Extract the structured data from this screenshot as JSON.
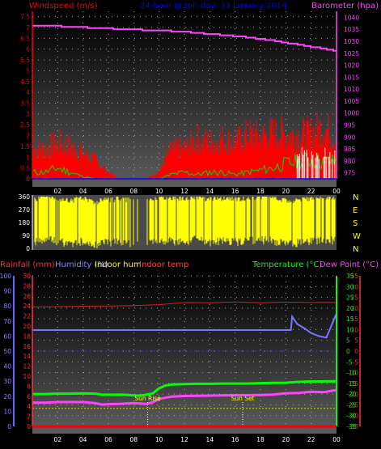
{
  "chart_data": [
    {
      "type": "line",
      "title": "24-hour graph day: 31 January 2014",
      "left_axis_label": "Windspeed (m/s)",
      "right_axis_label": "Barometer (hpa)",
      "x_ticks": [
        "02",
        "04",
        "06",
        "08",
        "10",
        "12",
        "14",
        "16",
        "18",
        "20",
        "22",
        "00"
      ],
      "left_ticks": [
        "0",
        "0.5",
        "1",
        "1.5",
        "2",
        "2.5",
        "3",
        "3.5",
        "4",
        "4.5",
        "5",
        "5.5",
        "6",
        "6.5",
        "7",
        "7.5"
      ],
      "right_ticks": [
        "975",
        "980",
        "985",
        "990",
        "995",
        "1000",
        "1005",
        "1010",
        "1015",
        "1020",
        "1025",
        "1030",
        "1035",
        "1040"
      ],
      "ylim_left": [
        0,
        7.75
      ],
      "ylim_right": [
        972.5,
        1042.5
      ],
      "xlim": [
        0,
        24
      ],
      "grid": true,
      "series": [
        {
          "name": "Barometer (hpa)",
          "color": "#ff44ff",
          "axis": "right",
          "x": [
            0,
            1,
            2,
            3,
            4,
            5,
            6,
            7,
            8,
            9,
            10,
            11,
            12,
            13,
            14,
            15,
            16,
            17,
            18,
            19,
            20,
            21,
            22,
            23,
            24
          ],
          "y": [
            1036.5,
            1036.5,
            1036.3,
            1036,
            1035.8,
            1035.6,
            1035.3,
            1035.1,
            1034.9,
            1034.6,
            1034.4,
            1034.2,
            1034,
            1033.5,
            1033,
            1032.6,
            1032.1,
            1031.6,
            1031.0,
            1030.2,
            1029.4,
            1028.5,
            1027.7,
            1026.9,
            1026.0
          ]
        },
        {
          "name": "Wind gust",
          "color": "#ff0000",
          "axis": "left",
          "x": [
            0,
            1,
            2,
            3,
            4,
            5,
            6,
            7,
            8,
            9,
            10,
            11,
            12,
            13,
            14,
            15,
            16,
            17,
            18,
            19,
            20,
            21,
            22,
            23,
            24
          ],
          "y": [
            1.5,
            1.5,
            1.8,
            1.6,
            1.3,
            0.9,
            0.3,
            0,
            0,
            0,
            0.4,
            1.5,
            1.5,
            2.0,
            1.8,
            2.0,
            1.8,
            2.2,
            2.1,
            2.3,
            2.2,
            2.2,
            2.3,
            2.6,
            2.0
          ]
        },
        {
          "name": "Wind average",
          "color": "#00dd00",
          "axis": "left",
          "x": [
            0,
            1,
            2,
            3,
            4,
            5,
            6,
            7,
            8,
            9,
            10,
            11,
            12,
            13,
            14,
            15,
            16,
            17,
            18,
            19,
            20,
            21,
            22,
            23,
            24
          ],
          "y": [
            0.3,
            0.3,
            0.5,
            0.3,
            0.1,
            0,
            0,
            0,
            0,
            0,
            0,
            0.2,
            0.3,
            0.2,
            0.3,
            0.3,
            0.2,
            0.3,
            0.4,
            0.5,
            0.7,
            0.8,
            0.9,
            0.8,
            0.8
          ]
        }
      ]
    },
    {
      "type": "scatter",
      "title": "Wind direction",
      "left_ticks": [
        "0",
        "90",
        "180",
        "270",
        "360"
      ],
      "right_ticks": [
        "N",
        "E",
        "S",
        "W",
        "N"
      ],
      "ylim": [
        0,
        360
      ],
      "xlim": [
        0,
        24
      ],
      "series": [
        {
          "name": "Wind direction",
          "color": "#ffff00",
          "x": [
            0,
            1,
            2,
            3,
            4,
            5,
            6,
            7,
            8,
            9,
            10,
            11,
            12,
            13,
            14,
            15,
            16,
            17,
            18,
            19,
            20,
            21,
            22,
            23,
            24
          ],
          "y": [
            250,
            290,
            270,
            250,
            270,
            240,
            260,
            260,
            250,
            250,
            280,
            270,
            270,
            280,
            260,
            270,
            260,
            270,
            280,
            270,
            250,
            260,
            270,
            280,
            270
          ]
        }
      ]
    },
    {
      "type": "line",
      "left_labels": [
        {
          "text": "Rainfall (mm)",
          "color": "#ff3333"
        },
        {
          "text": "Humidity (%)",
          "color": "#8888ff"
        },
        {
          "text": "Indoor hum",
          "color": "#ffff00"
        },
        {
          "text": "Indoor temp",
          "color": "#ff4444"
        }
      ],
      "right_labels": [
        {
          "text": "Temperature (°C)",
          "color": "#00ff00"
        },
        {
          "text": "Dew Point (°C)",
          "color": "#ff44ff"
        }
      ],
      "rain_ticks": [
        "0",
        "2",
        "4",
        "6",
        "8",
        "10",
        "12",
        "14",
        "16",
        "18",
        "20",
        "22",
        "24",
        "26",
        "28",
        "30"
      ],
      "hum_ticks": [
        "0",
        "10",
        "20",
        "30",
        "40",
        "50",
        "60",
        "70",
        "80",
        "90",
        "100"
      ],
      "temp_ticks": [
        "-35",
        "-30",
        "-25",
        "-20",
        "-15",
        "-10",
        "-5",
        "0",
        "5",
        "10",
        "15",
        "20",
        "25",
        "30",
        "35"
      ],
      "temp_tick_values": [
        -35,
        -30,
        -25,
        -20,
        -15,
        -10,
        -5,
        0,
        5,
        10,
        15,
        20,
        25,
        30,
        35
      ],
      "xlim": [
        0,
        24
      ],
      "ylim_temp": [
        -35,
        35
      ],
      "ylim_hum": [
        0,
        100
      ],
      "x_ticks": [
        "02",
        "04",
        "06",
        "08",
        "10",
        "12",
        "14",
        "16",
        "18",
        "20",
        "22",
        "00"
      ],
      "annotations": [
        {
          "text": "Sun Rise",
          "x": 9.1
        },
        {
          "text": "Sun Set",
          "x": 16.6
        }
      ],
      "series": [
        {
          "name": "Humidity (%)",
          "color": "#7777ff",
          "axis": "hum",
          "x": [
            0,
            20.4,
            20.5,
            20.9,
            21.5,
            22.0,
            22.6,
            23.2,
            23.6,
            24
          ],
          "y": [
            64,
            64,
            73,
            68,
            65,
            62,
            60,
            59,
            67,
            75
          ]
        },
        {
          "name": "Temperature (°C)",
          "color": "#00ff00",
          "axis": "temp",
          "x": [
            0,
            1,
            2,
            3,
            4,
            5,
            5.5,
            6,
            7,
            8,
            8.5,
            9,
            9.5,
            10,
            10.5,
            11,
            12,
            13,
            14,
            15,
            16,
            17,
            18,
            19,
            20,
            21,
            22,
            23,
            24
          ],
          "y": [
            -20,
            -20,
            -19.8,
            -19.8,
            -19.7,
            -19.8,
            -20.3,
            -20.3,
            -20.2,
            -20.6,
            -20.7,
            -20.3,
            -19.7,
            -17.3,
            -16,
            -15.5,
            -15.3,
            -15.2,
            -15.2,
            -15.1,
            -15.1,
            -15.1,
            -14.9,
            -14.8,
            -14.7,
            -14.3,
            -14.1,
            -14.1,
            -14.0
          ]
        },
        {
          "name": "Dew Point (°C)",
          "color": "#ff44ff",
          "axis": "temp",
          "x": [
            0,
            1,
            2,
            3,
            4,
            5,
            5.5,
            6,
            7,
            8,
            8.5,
            9,
            9.5,
            10,
            10.5,
            11,
            12,
            13,
            14,
            15,
            16,
            17,
            18,
            19,
            20,
            21,
            22,
            23,
            24
          ],
          "y": [
            -24,
            -24,
            -23.7,
            -23.7,
            -23.7,
            -24.2,
            -24.9,
            -24.7,
            -24.5,
            -24.2,
            -24.4,
            -24.6,
            -23.8,
            -22.2,
            -21.7,
            -21.2,
            -20.9,
            -20.8,
            -20.7,
            -20.6,
            -20.5,
            -20.5,
            -20.4,
            -20.2,
            -19.6,
            -19.5,
            -18.9,
            -19.1,
            -18.1
          ]
        },
        {
          "name": "Indoor temp",
          "color": "#cc2222",
          "axis": "temp",
          "x": [
            0,
            2,
            4,
            6,
            8,
            10,
            12,
            14,
            16,
            18,
            20,
            22,
            24
          ],
          "y": [
            20.5,
            20.7,
            20.9,
            21.0,
            21.2,
            21.6,
            22.6,
            22.5,
            22.9,
            22.5,
            22.8,
            22.6,
            22.6
          ]
        },
        {
          "name": "Indoor hum",
          "color": "#cccc00",
          "axis": "hum",
          "x": [
            0,
            24
          ],
          "y": [
            12,
            12
          ]
        },
        {
          "name": "Rainfall (mm)",
          "color": "#ff0000",
          "axis": "rain",
          "x": [
            0,
            24
          ],
          "y": [
            0,
            0
          ]
        }
      ]
    }
  ]
}
